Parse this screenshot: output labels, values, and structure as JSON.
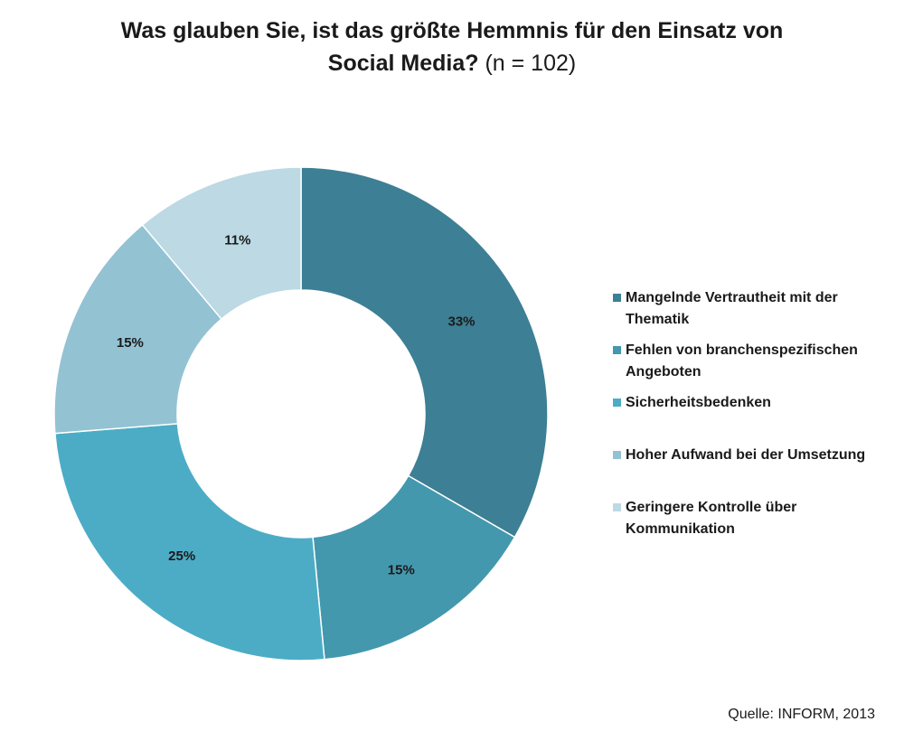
{
  "title": {
    "line1": "Was glauben Sie, ist das größte Hemmnis für den Einsatz von",
    "line2_bold": "Social Media?",
    "line2_normal": " (n = 102)"
  },
  "source": "Quelle: INFORM, 2013",
  "chart_data": {
    "type": "pie",
    "variant": "donut",
    "title": "Was glauben Sie, ist das größte Hemmnis für den Einsatz von Social Media? (n = 102)",
    "categories": [
      "Mangelnde Vertrautheit mit der Thematik",
      "Fehlen von branchenspezifischen Angeboten",
      "Sicherheitsbedenken",
      "Hoher Aufwand bei der Umsetzung",
      "Geringere Kontrolle über Kommunikation"
    ],
    "values": [
      33,
      15,
      25,
      15,
      11
    ],
    "value_labels": [
      "33%",
      "15%",
      "25%",
      "15%",
      "11%"
    ],
    "unit": "%",
    "colors": [
      "#3d7f94",
      "#4398ae",
      "#4cacc6",
      "#93c2d3",
      "#bcd9e4"
    ],
    "start_angle": "12 o'clock",
    "direction": "clockwise",
    "legend_position": "right",
    "legend": [
      {
        "lines": [
          "Mangelnde Vertrautheit mit der",
          "Thematik"
        ]
      },
      {
        "lines": [
          "Fehlen von branchenspezifischen",
          "Angeboten"
        ]
      },
      {
        "lines": [
          "Sicherheitsbedenken"
        ]
      },
      {
        "lines": [
          "Hoher Aufwand bei der Umsetzung"
        ]
      },
      {
        "lines": [
          "Geringere Kontrolle über",
          "Kommunikation"
        ]
      }
    ]
  }
}
